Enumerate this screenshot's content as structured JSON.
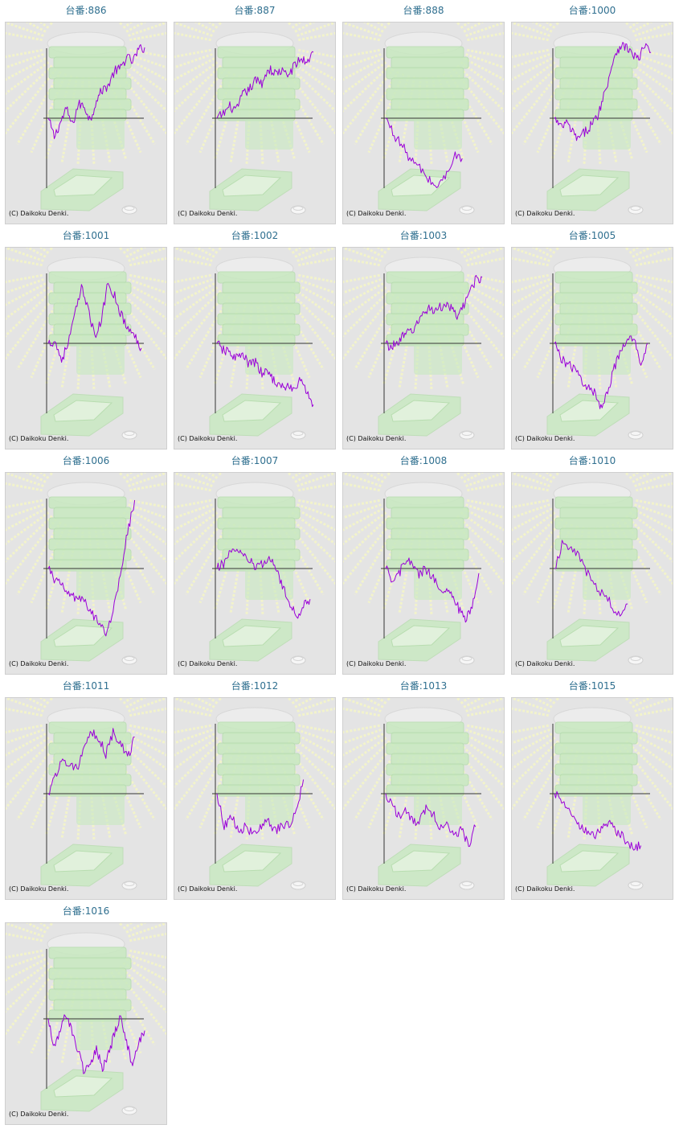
{
  "chart_data": [
    {
      "type": "line",
      "title": "台番:886",
      "credit": "(C) Daikoku Denki.",
      "trend": [
        0,
        -800,
        -200,
        400,
        -300,
        600,
        500,
        -100,
        800,
        1200,
        1400,
        2000,
        2100,
        2600,
        2400,
        2900,
        3000
      ],
      "ylim": [
        -3000,
        3000
      ]
    },
    {
      "type": "line",
      "title": "台番:887",
      "credit": "(C) Daikoku Denki.",
      "trend": [
        0,
        200,
        500,
        300,
        1000,
        1200,
        1600,
        1500,
        2100,
        1900,
        2000,
        1800,
        2200,
        2500,
        2400,
        2800
      ],
      "ylim": [
        -3000,
        3000
      ]
    },
    {
      "type": "line",
      "title": "台番:888",
      "credit": "(C) Daikoku Denki.",
      "trend": [
        0,
        -700,
        -1200,
        -1800,
        -2100,
        -2600,
        -2900,
        -2500,
        -1600,
        -1700
      ],
      "ylim": [
        -3000,
        3000
      ]
    },
    {
      "type": "line",
      "title": "台番:1000",
      "credit": "(C) Daikoku Denki.",
      "trend": [
        0,
        -400,
        -200,
        -600,
        -900,
        -600,
        -300,
        0,
        800,
        1700,
        2700,
        3100,
        3000,
        2700,
        2500,
        3100,
        2800
      ],
      "ylim": [
        -3000,
        3000
      ]
    },
    {
      "type": "line",
      "title": "台番:1001",
      "credit": "(C) Daikoku Denki.",
      "trend": [
        0,
        100,
        -700,
        0,
        1200,
        2300,
        1600,
        200,
        1000,
        2600,
        2000,
        1200,
        600,
        300,
        -200
      ],
      "ylim": [
        -3000,
        3000
      ]
    },
    {
      "type": "line",
      "title": "台番:1002",
      "credit": "(C) Daikoku Denki.",
      "trend": [
        0,
        -300,
        -400,
        -600,
        -500,
        -900,
        -800,
        -1300,
        -1200,
        -1600,
        -1900,
        -1800,
        -2000,
        -1500,
        -2100,
        -2600
      ],
      "ylim": [
        -3000,
        3000
      ]
    },
    {
      "type": "line",
      "title": "台番:1003",
      "credit": "(C) Daikoku Denki.",
      "trend": [
        0,
        -200,
        100,
        300,
        500,
        700,
        1200,
        1500,
        1400,
        1500,
        1700,
        1400,
        1100,
        1600,
        2300,
        2700,
        2800
      ],
      "ylim": [
        -3000,
        3000
      ]
    },
    {
      "type": "line",
      "title": "台番:1005",
      "credit": "(C) Daikoku Denki.",
      "trend": [
        0,
        -600,
        -900,
        -1100,
        -1500,
        -1900,
        -2100,
        -2700,
        -2000,
        -1000,
        -400,
        200,
        100,
        -800,
        0
      ],
      "ylim": [
        -3000,
        3000
      ]
    },
    {
      "type": "line",
      "title": "台番:1006",
      "credit": "(C) Daikoku Denki.",
      "trend": [
        0,
        -500,
        -800,
        -1100,
        -1300,
        -1400,
        -1900,
        -2200,
        -2700,
        -1900,
        -200,
        1500,
        2900
      ],
      "ylim": [
        -3000,
        3000
      ]
    },
    {
      "type": "line",
      "title": "台番:1007",
      "credit": "(C) Daikoku Denki.",
      "trend": [
        0,
        200,
        800,
        700,
        500,
        300,
        0,
        200,
        500,
        -100,
        -900,
        -1500,
        -2100,
        -1500,
        -1300
      ],
      "ylim": [
        -3000,
        3000
      ]
    },
    {
      "type": "line",
      "title": "台番:1008",
      "credit": "(C) Daikoku Denki.",
      "trend": [
        0,
        -600,
        -200,
        300,
        200,
        -300,
        0,
        -400,
        -700,
        -900,
        -1200,
        -1700,
        -2300,
        -1500,
        -200
      ],
      "ylim": [
        -3000,
        3000
      ]
    },
    {
      "type": "line",
      "title": "台番:1010",
      "credit": "(C) Daikoku Denki.",
      "trend": [
        0,
        1200,
        800,
        300,
        -500,
        -1000,
        -1400,
        -2000,
        -1500
      ],
      "ylim": [
        -3000,
        3000
      ]
    },
    {
      "type": "line",
      "title": "台番:1011",
      "credit": "(C) Daikoku Denki.",
      "trend": [
        0,
        800,
        1400,
        1300,
        1100,
        1800,
        2600,
        2300,
        1700,
        2600,
        2200,
        1500,
        2400
      ],
      "ylim": [
        -3000,
        3000
      ]
    },
    {
      "type": "line",
      "title": "台番:1012",
      "credit": "(C) Daikoku Denki.",
      "trend": [
        0,
        -1400,
        -900,
        -1700,
        -1300,
        -1800,
        -1500,
        -1100,
        -1600,
        -1400,
        -1300,
        -700,
        600
      ],
      "ylim": [
        -3000,
        3000
      ]
    },
    {
      "type": "line",
      "title": "台番:1013",
      "credit": "(C) Daikoku Denki.",
      "trend": [
        0,
        -600,
        -900,
        -700,
        -1200,
        -1100,
        -600,
        -900,
        -1500,
        -1300,
        -1800,
        -1500,
        -2200,
        -1400
      ],
      "ylim": [
        -3000,
        3000
      ]
    },
    {
      "type": "line",
      "title": "台番:1015",
      "credit": "(C) Daikoku Denki.",
      "trend": [
        0,
        -300,
        -800,
        -1200,
        -1500,
        -1800,
        -1700,
        -1200,
        -1400,
        -1700,
        -2000,
        -2300,
        -2200
      ],
      "ylim": [
        -3000,
        3000
      ]
    },
    {
      "type": "line",
      "title": "台番:1016",
      "credit": "(C) Daikoku Denki.",
      "trend": [
        0,
        -1200,
        -500,
        200,
        -600,
        -1400,
        -2300,
        -1900,
        -1300,
        -2100,
        -1500,
        -600,
        200,
        -1000,
        -2000,
        -1100,
        -500
      ],
      "ylim": [
        -3000,
        3000
      ]
    }
  ],
  "colors": {
    "title": "#2f6f8f",
    "line": "#9a00d8",
    "axis": "#333333",
    "panel_bg": "#e4e4e4",
    "glow": "#f4f5c9",
    "stack": "#c8e9c0"
  },
  "icons": [
    "sunburst-background",
    "stacked-trays-illustration",
    "tray-illustration",
    "coin-illustration"
  ]
}
